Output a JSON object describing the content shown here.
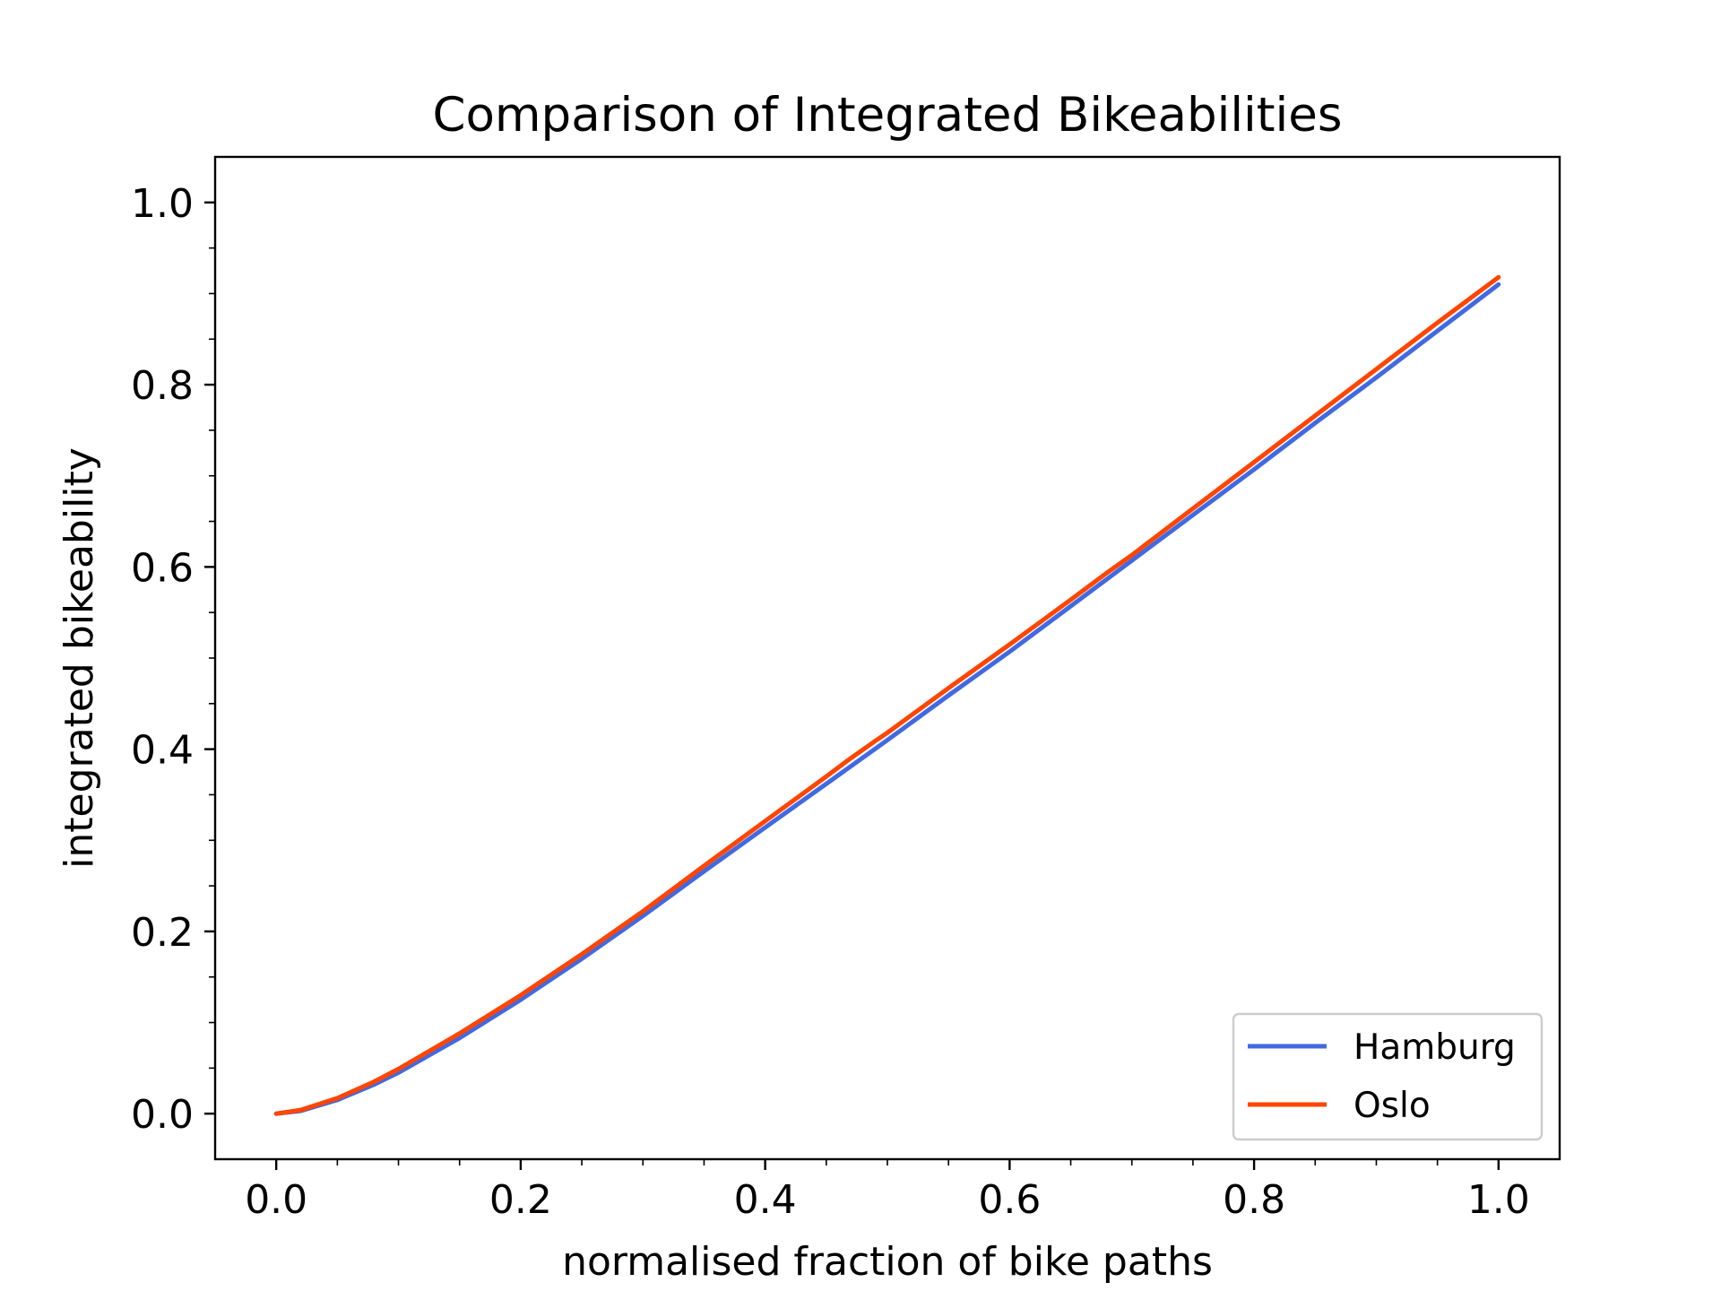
{
  "chart_data": {
    "type": "line",
    "title": "Comparison of Integrated Bikeabilities",
    "xlabel": "normalised fraction of bike paths",
    "ylabel": "integrated bikeability",
    "xlim": [
      -0.05,
      1.05
    ],
    "ylim": [
      -0.05,
      1.05
    ],
    "x_ticks": [
      0.0,
      0.2,
      0.4,
      0.6,
      0.8,
      1.0
    ],
    "y_ticks": [
      0.0,
      0.2,
      0.4,
      0.6,
      0.8,
      1.0
    ],
    "x_tick_labels": [
      "0.0",
      "0.2",
      "0.4",
      "0.6",
      "0.8",
      "1.0"
    ],
    "y_tick_labels": [
      "0.0",
      "0.2",
      "0.4",
      "0.6",
      "0.8",
      "1.0"
    ],
    "grid": false,
    "legend_position": "lower-right",
    "series": [
      {
        "name": "Hamburg",
        "color": "#4169e1",
        "x": [
          0.0,
          0.02,
          0.05,
          0.08,
          0.1,
          0.15,
          0.2,
          0.25,
          0.3,
          0.35,
          0.4,
          0.45,
          0.5,
          0.55,
          0.6,
          0.65,
          0.7,
          0.75,
          0.8,
          0.85,
          0.9,
          0.95,
          1.0
        ],
        "y": [
          0.0,
          0.003,
          0.015,
          0.032,
          0.045,
          0.083,
          0.125,
          0.17,
          0.217,
          0.266,
          0.314,
          0.362,
          0.41,
          0.459,
          0.507,
          0.557,
          0.607,
          0.657,
          0.707,
          0.758,
          0.808,
          0.859,
          0.91
        ]
      },
      {
        "name": "Oslo",
        "color": "#ff4500",
        "x": [
          0.0,
          0.02,
          0.05,
          0.08,
          0.1,
          0.15,
          0.2,
          0.25,
          0.3,
          0.35,
          0.4,
          0.45,
          0.47,
          0.49,
          0.5,
          0.55,
          0.6,
          0.65,
          0.68,
          0.7,
          0.75,
          0.8,
          0.85,
          0.9,
          0.95,
          1.0
        ],
        "y": [
          0.0,
          0.004,
          0.017,
          0.035,
          0.049,
          0.088,
          0.13,
          0.175,
          0.222,
          0.272,
          0.321,
          0.37,
          0.39,
          0.409,
          0.418,
          0.467,
          0.515,
          0.564,
          0.594,
          0.613,
          0.664,
          0.715,
          0.766,
          0.817,
          0.868,
          0.918
        ]
      }
    ]
  }
}
